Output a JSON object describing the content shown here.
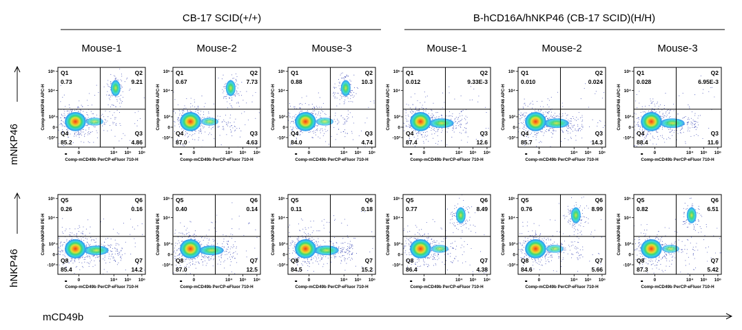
{
  "groups": [
    {
      "title": "CB-17 SCID(+/+)"
    },
    {
      "title": "B-hCD16A/hNKP46 (CB-17 SCID)(H/H)"
    }
  ],
  "axis_labels": {
    "row1": "mNKP46",
    "row2": "hNKP46",
    "bottom": "mCD49b"
  },
  "chart_data": [
    {
      "type": "scatter",
      "group": "CB-17 SCID(+/+)",
      "title": "Mouse-1",
      "xlabel": "Comp-mCD49b PerCP-eFluor 710-H",
      "ylabel": "Comp-mNKP46 APC-H",
      "quadrants": {
        "Q1": "0.73",
        "Q2": "9.21",
        "Q3": "4.86",
        "Q4": "85.2"
      }
    },
    {
      "type": "scatter",
      "group": "CB-17 SCID(+/+)",
      "title": "Mouse-2",
      "xlabel": "Comp-mCD49b PerCP-eFluor 710-H",
      "ylabel": "Comp-mNKP46 APC-H",
      "quadrants": {
        "Q1": "0.67",
        "Q2": "7.73",
        "Q3": "4.63",
        "Q4": "87.0"
      }
    },
    {
      "type": "scatter",
      "group": "CB-17 SCID(+/+)",
      "title": "Mouse-3",
      "xlabel": "Comp-mCD49b PerCP-eFluor 710-H",
      "ylabel": "Comp-mNKP46 APC-H",
      "quadrants": {
        "Q1": "0.88",
        "Q2": "10.3",
        "Q3": "4.74",
        "Q4": "84.0"
      }
    },
    {
      "type": "scatter",
      "group": "B-hCD16A/hNKP46 (CB-17 SCID)(H/H)",
      "title": "Mouse-1",
      "xlabel": "Comp-mCD49b PerCP-eFluor 710-H",
      "ylabel": "Comp-mNKP46 APC-H",
      "quadrants": {
        "Q1": "0.012",
        "Q2": "9.33E-3",
        "Q3": "12.6",
        "Q4": "87.4"
      }
    },
    {
      "type": "scatter",
      "group": "B-hCD16A/hNKP46 (CB-17 SCID)(H/H)",
      "title": "Mouse-2",
      "xlabel": "Comp-mCD49b PerCP-eFluor 710-H",
      "ylabel": "Comp-mNKP46 APC-H",
      "quadrants": {
        "Q1": "0.010",
        "Q2": "0.024",
        "Q3": "14.3",
        "Q4": "85.7"
      }
    },
    {
      "type": "scatter",
      "group": "B-hCD16A/hNKP46 (CB-17 SCID)(H/H)",
      "title": "Mouse-3",
      "xlabel": "Comp-mCD49b PerCP-eFluor 710-H",
      "ylabel": "Comp-mNKP46 APC-H",
      "quadrants": {
        "Q1": "0.028",
        "Q2": "6.95E-3",
        "Q3": "11.6",
        "Q4": "88.4"
      }
    },
    {
      "type": "scatter",
      "group": "CB-17 SCID(+/+)",
      "title": "Mouse-1",
      "xlabel": "Comp-mCD49b PerCP-eFluor 710-H",
      "ylabel": "Comp-hNKP46 PE-H",
      "quadrants": {
        "Q5": "0.26",
        "Q6": "0.16",
        "Q7": "14.2",
        "Q8": "85.4"
      }
    },
    {
      "type": "scatter",
      "group": "CB-17 SCID(+/+)",
      "title": "Mouse-2",
      "xlabel": "Comp-mCD49b PerCP-eFluor 710-H",
      "ylabel": "Comp-hNKP46 PE-H",
      "quadrants": {
        "Q5": "0.40",
        "Q6": "0.14",
        "Q7": "12.5",
        "Q8": "87.0"
      }
    },
    {
      "type": "scatter",
      "group": "CB-17 SCID(+/+)",
      "title": "Mouse-3",
      "xlabel": "Comp-mCD49b PerCP-eFluor 710-H",
      "ylabel": "Comp-hNKP46 PE-H",
      "quadrants": {
        "Q5": "0.11",
        "Q6": "0.18",
        "Q7": "15.2",
        "Q8": "84.5"
      }
    },
    {
      "type": "scatter",
      "group": "B-hCD16A/hNKP46 (CB-17 SCID)(H/H)",
      "title": "Mouse-1",
      "xlabel": "Comp-mCD49b PerCP-eFluor 710-H",
      "ylabel": "Comp-hNKP46 PE-H",
      "quadrants": {
        "Q5": "0.77",
        "Q6": "8.49",
        "Q7": "4.38",
        "Q8": "86.4"
      }
    },
    {
      "type": "scatter",
      "group": "B-hCD16A/hNKP46 (CB-17 SCID)(H/H)",
      "title": "Mouse-2",
      "xlabel": "Comp-mCD49b PerCP-eFluor 710-H",
      "ylabel": "Comp-hNKP46 PE-H",
      "quadrants": {
        "Q5": "0.76",
        "Q6": "8.99",
        "Q7": "5.66",
        "Q8": "84.6"
      }
    },
    {
      "type": "scatter",
      "group": "B-hCD16A/hNKP46 (CB-17 SCID)(H/H)",
      "title": "Mouse-3",
      "xlabel": "Comp-mCD49b PerCP-eFluor 710-H",
      "ylabel": "Comp-hNKP46 PE-H",
      "quadrants": {
        "Q5": "0.82",
        "Q6": "6.51",
        "Q7": "5.42",
        "Q8": "87.3"
      }
    }
  ],
  "axis_ticks": {
    "y": [
      "10⁵",
      "10⁴",
      "10³",
      "0",
      "-10³"
    ],
    "x": [
      "0",
      "10⁴",
      "10⁵",
      "10⁶"
    ]
  },
  "colors": {
    "density": [
      "#1b2aa8",
      "#2b8ff0",
      "#38d3e0",
      "#36d67a",
      "#d6e43a",
      "#f7a21e",
      "#ef3b1e"
    ],
    "lines": "#000000"
  }
}
